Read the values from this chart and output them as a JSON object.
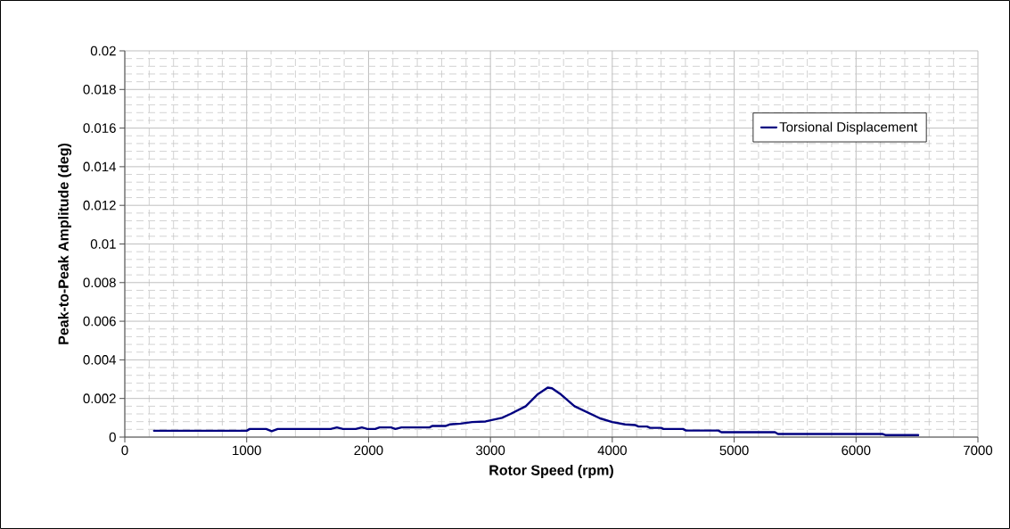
{
  "chart_data": {
    "type": "line",
    "xlabel": "Rotor Speed (rpm)",
    "ylabel": "Peak-to-Peak Amplitude (deg)",
    "xlim": [
      0,
      7000
    ],
    "ylim": [
      0,
      0.02
    ],
    "xticks": [
      0,
      1000,
      2000,
      3000,
      4000,
      5000,
      6000,
      7000
    ],
    "yticks": [
      0,
      0.002,
      0.004,
      0.006,
      0.008,
      0.01,
      0.012,
      0.014,
      0.016,
      0.018,
      0.02
    ],
    "grid": true,
    "legend": "top right",
    "marker": "none",
    "line_style": "solid",
    "series": [
      {
        "name": "Torsional Displacement",
        "color": "#000080",
        "x": [
          240,
          1000,
          1025,
          1160,
          1205,
          1255,
          1690,
          1740,
          1790,
          1895,
          1945,
          1990,
          2055,
          2090,
          2185,
          2220,
          2270,
          2500,
          2525,
          2635,
          2670,
          2755,
          2850,
          2960,
          3095,
          3165,
          3290,
          3385,
          3470,
          3505,
          3580,
          3690,
          3900,
          4000,
          4105,
          4190,
          4215,
          4285,
          4310,
          4400,
          4420,
          4580,
          4605,
          4870,
          4895,
          5335,
          5360,
          6220,
          6245,
          6510
        ],
        "values": [
          0.00033,
          0.00033,
          0.00042,
          0.00042,
          0.00031,
          0.00042,
          0.00042,
          0.0005,
          0.00042,
          0.00042,
          0.0005,
          0.00042,
          0.00042,
          0.0005,
          0.0005,
          0.00042,
          0.0005,
          0.0005,
          0.00058,
          0.00058,
          0.00066,
          0.0007,
          0.00078,
          0.00081,
          0.001,
          0.0012,
          0.0016,
          0.0022,
          0.00256,
          0.00253,
          0.0022,
          0.0016,
          0.00097,
          0.00078,
          0.00066,
          0.00062,
          0.00055,
          0.00055,
          0.00048,
          0.00048,
          0.00042,
          0.00042,
          0.00034,
          0.00034,
          0.00025,
          0.00025,
          0.00016,
          0.00016,
          0.0001,
          0.0001
        ]
      }
    ]
  }
}
